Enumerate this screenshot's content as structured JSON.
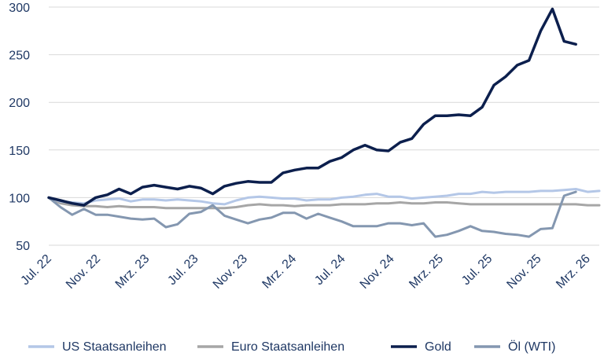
{
  "chart_data": {
    "type": "line",
    "title": "",
    "xlabel": "",
    "ylabel": "",
    "ylim": [
      50,
      300
    ],
    "yticks": [
      50,
      100,
      150,
      200,
      250,
      300
    ],
    "grid": "horizontal",
    "legend_position": "bottom",
    "x_ticks": [
      "Jul. 22",
      "Nov. 22",
      "Mrz. 23",
      "Jul. 23",
      "Nov. 23",
      "Mrz. 24",
      "Jul. 24",
      "Nov. 24",
      "Mrz. 25",
      "Jul. 25",
      "Nov. 25",
      "Mrz. 26"
    ],
    "series": [
      {
        "name": "US Staatsanleihen",
        "color": "#b4c7e7",
        "values": [
          100,
          96,
          95,
          94,
          97,
          98,
          99,
          96,
          98,
          98,
          97,
          98,
          97,
          96,
          94,
          93,
          97,
          100,
          101,
          100,
          99,
          99,
          97,
          98,
          98,
          100,
          101,
          103,
          104,
          101,
          101,
          99,
          100,
          101,
          102,
          104,
          104,
          106,
          105,
          106,
          106,
          106,
          107,
          107,
          108,
          109,
          106,
          107
        ]
      },
      {
        "name": "Euro Staatsanleihen",
        "color": "#a6a6a6",
        "values": [
          100,
          94,
          92,
          91,
          91,
          90,
          91,
          90,
          90,
          90,
          89,
          89,
          89,
          89,
          89,
          89,
          90,
          92,
          93,
          92,
          92,
          91,
          92,
          92,
          92,
          93,
          93,
          93,
          94,
          94,
          95,
          94,
          94,
          95,
          95,
          94,
          93,
          93,
          93,
          93,
          93,
          93,
          93,
          93,
          93,
          93,
          92,
          92
        ]
      },
      {
        "name": "Gold",
        "color": "#0c1f4d",
        "values": [
          100,
          97,
          94,
          92,
          100,
          103,
          109,
          104,
          111,
          113,
          111,
          109,
          112,
          110,
          104,
          112,
          115,
          117,
          116,
          116,
          126,
          129,
          131,
          131,
          138,
          142,
          150,
          155,
          150,
          149,
          158,
          162,
          177,
          186,
          186,
          187,
          186,
          195,
          218,
          227,
          239,
          244,
          275,
          298,
          264,
          261
        ]
      },
      {
        "name": "Öl (WTI)",
        "color": "#8497b0",
        "values": [
          100,
          90,
          82,
          88,
          82,
          82,
          80,
          78,
          77,
          78,
          69,
          72,
          83,
          85,
          92,
          81,
          77,
          73,
          77,
          79,
          84,
          84,
          78,
          83,
          79,
          75,
          70,
          70,
          70,
          73,
          73,
          71,
          73,
          59,
          61,
          65,
          70,
          65,
          64,
          62,
          61,
          59,
          67,
          68,
          102,
          106
        ]
      }
    ]
  }
}
